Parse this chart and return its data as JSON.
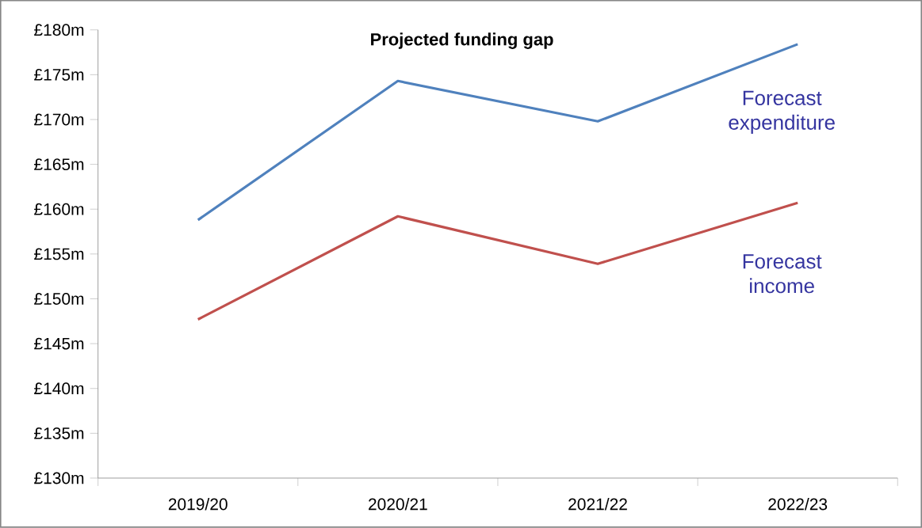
{
  "chart_data": {
    "type": "line",
    "title": "Projected funding gap",
    "categories": [
      "2019/20",
      "2020/21",
      "2021/22",
      "2022/23"
    ],
    "series": [
      {
        "name": "Forecast expenditure",
        "color": "#4f81bd",
        "values": [
          158.8,
          174.3,
          169.8,
          178.4
        ]
      },
      {
        "name": "Forecast income",
        "color": "#c0504d",
        "values": [
          147.7,
          159.2,
          153.9,
          160.7
        ]
      }
    ],
    "ylim": [
      130,
      180
    ],
    "yticks": [
      {
        "value": 130,
        "label": "£130m"
      },
      {
        "value": 135,
        "label": "£135m"
      },
      {
        "value": 140,
        "label": "£140m"
      },
      {
        "value": 145,
        "label": "£145m"
      },
      {
        "value": 150,
        "label": "£150m"
      },
      {
        "value": 155,
        "label": "£155m"
      },
      {
        "value": 160,
        "label": "£160m"
      },
      {
        "value": 165,
        "label": "£165m"
      },
      {
        "value": 170,
        "label": "£170m"
      },
      {
        "value": 175,
        "label": "£175m"
      },
      {
        "value": 180,
        "label": "£180m"
      }
    ]
  }
}
